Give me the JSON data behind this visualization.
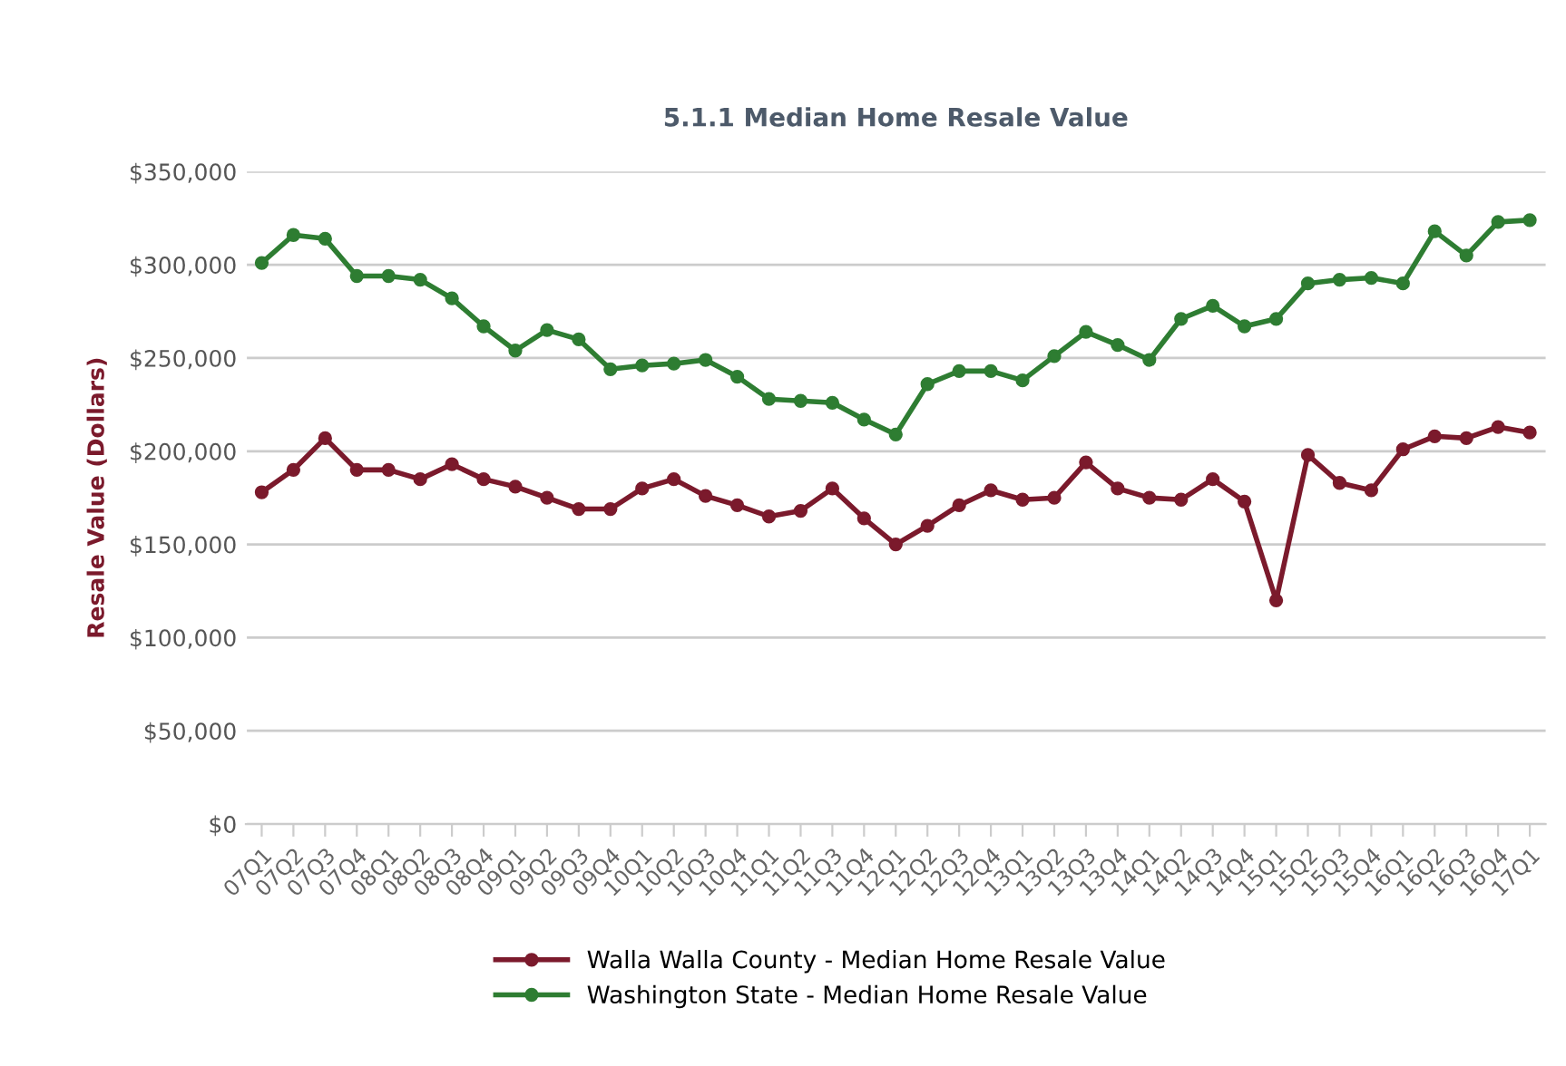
{
  "chart_data": {
    "type": "line",
    "title": "5.1.1 Median Home Resale Value",
    "ylabel": "Resale Value (Dollars)",
    "categories": [
      "07Q1",
      "07Q2",
      "07Q3",
      "07Q4",
      "08Q1",
      "08Q2",
      "08Q3",
      "08Q4",
      "09Q1",
      "09Q2",
      "09Q3",
      "09Q4",
      "10Q1",
      "10Q2",
      "10Q3",
      "10Q4",
      "11Q1",
      "11Q2",
      "11Q3",
      "11Q4",
      "12Q1",
      "12Q2",
      "12Q3",
      "12Q4",
      "13Q1",
      "13Q2",
      "13Q3",
      "13Q4",
      "14Q1",
      "14Q2",
      "14Q3",
      "14Q4",
      "15Q1",
      "15Q2",
      "15Q3",
      "15Q4",
      "16Q1",
      "16Q2",
      "16Q3",
      "16Q4",
      "17Q1"
    ],
    "series": [
      {
        "name": "Walla Walla County - Median Home Resale Value",
        "color": "#7b1a2c",
        "values": [
          178000,
          190000,
          207000,
          190000,
          190000,
          185000,
          193000,
          185000,
          181000,
          175000,
          169000,
          169000,
          180000,
          185000,
          176000,
          171000,
          165000,
          168000,
          180000,
          164000,
          150000,
          160000,
          171000,
          179000,
          174000,
          175000,
          194000,
          180000,
          175000,
          174000,
          185000,
          173000,
          120000,
          198000,
          183000,
          179000,
          201000,
          208000,
          207000,
          213000,
          210000
        ]
      },
      {
        "name": "Washington State - Median Home Resale Value",
        "color": "#2e7d32",
        "values": [
          301000,
          316000,
          314000,
          294000,
          294000,
          292000,
          282000,
          267000,
          254000,
          265000,
          260000,
          244000,
          246000,
          247000,
          249000,
          240000,
          228000,
          227000,
          226000,
          217000,
          209000,
          236000,
          243000,
          243000,
          238000,
          251000,
          264000,
          257000,
          249000,
          271000,
          278000,
          267000,
          271000,
          290000,
          292000,
          293000,
          290000,
          318000,
          305000,
          323000,
          324000
        ]
      }
    ],
    "ylim": [
      0,
      350000
    ],
    "yticks": [
      {
        "value": 0,
        "label": "$0"
      },
      {
        "value": 50000,
        "label": "$50,000"
      },
      {
        "value": 100000,
        "label": "$100,000"
      },
      {
        "value": 150000,
        "label": "$150,000"
      },
      {
        "value": 200000,
        "label": "$200,000"
      },
      {
        "value": 250000,
        "label": "$250,000"
      },
      {
        "value": 300000,
        "label": "$300,000"
      },
      {
        "value": 350000,
        "label": "$350,000"
      }
    ],
    "grid": "y",
    "legend": "bottom",
    "marker": "circle",
    "line_style": "solid"
  }
}
